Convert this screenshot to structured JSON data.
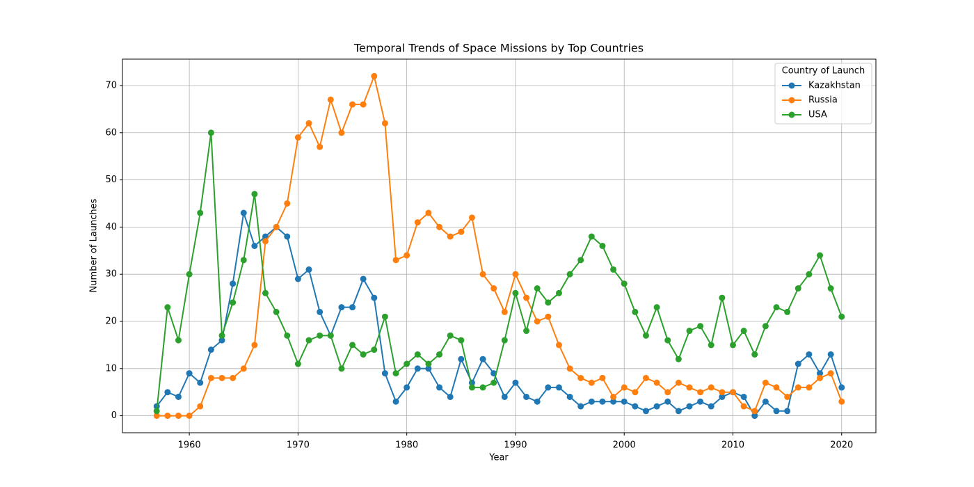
{
  "chart_data": {
    "type": "line",
    "title": "Temporal Trends of Space Missions by Top Countries",
    "x_label": "Year",
    "y_label": "Number of Launches",
    "x": [
      1957,
      1958,
      1959,
      1960,
      1961,
      1962,
      1963,
      1964,
      1965,
      1966,
      1967,
      1968,
      1969,
      1970,
      1971,
      1972,
      1973,
      1974,
      1975,
      1976,
      1977,
      1978,
      1979,
      1980,
      1981,
      1982,
      1983,
      1984,
      1985,
      1986,
      1987,
      1988,
      1989,
      1990,
      1991,
      1992,
      1993,
      1994,
      1995,
      1996,
      1997,
      1998,
      1999,
      2000,
      2001,
      2002,
      2003,
      2004,
      2005,
      2006,
      2007,
      2008,
      2009,
      2010,
      2011,
      2012,
      2013,
      2014,
      2015,
      2016,
      2017,
      2018,
      2019,
      2020
    ],
    "series": [
      {
        "name": "Kazakhstan",
        "color": "#1f77b4",
        "values": [
          2,
          5,
          4,
          9,
          7,
          14,
          16,
          28,
          43,
          36,
          38,
          40,
          38,
          29,
          31,
          22,
          17,
          23,
          23,
          29,
          25,
          9,
          3,
          6,
          10,
          10,
          6,
          4,
          12,
          7,
          12,
          9,
          4,
          7,
          4,
          3,
          6,
          6,
          4,
          2,
          3,
          3,
          3,
          3,
          2,
          1,
          2,
          3,
          1,
          2,
          3,
          2,
          4,
          5,
          4,
          0,
          3,
          1,
          1,
          11,
          13,
          9,
          13,
          6
        ]
      },
      {
        "name": "Russia",
        "color": "#ff7f0e",
        "values": [
          0,
          0,
          0,
          0,
          2,
          8,
          8,
          8,
          10,
          15,
          37,
          40,
          45,
          59,
          62,
          57,
          67,
          60,
          66,
          66,
          72,
          62,
          33,
          34,
          41,
          43,
          40,
          38,
          39,
          42,
          30,
          27,
          22,
          30,
          25,
          20,
          21,
          15,
          10,
          8,
          7,
          8,
          4,
          6,
          5,
          8,
          7,
          5,
          7,
          6,
          5,
          6,
          5,
          5,
          2,
          1,
          7,
          6,
          4,
          6,
          6,
          8,
          9,
          3
        ]
      },
      {
        "name": "USA",
        "color": "#2ca02c",
        "values": [
          1,
          23,
          16,
          30,
          43,
          60,
          17,
          24,
          33,
          47,
          26,
          22,
          17,
          11,
          16,
          17,
          17,
          10,
          15,
          13,
          14,
          21,
          9,
          11,
          13,
          11,
          13,
          17,
          16,
          6,
          6,
          7,
          16,
          26,
          18,
          27,
          24,
          26,
          30,
          33,
          38,
          36,
          31,
          28,
          22,
          17,
          23,
          16,
          12,
          18,
          19,
          15,
          25,
          15,
          18,
          13,
          19,
          23,
          22,
          27,
          30,
          34,
          27,
          21
        ]
      }
    ],
    "xlim": [
      1953.85,
      2023.15
    ],
    "xticks": [
      1960,
      1970,
      1980,
      1990,
      2000,
      2010,
      2020
    ],
    "ylim": [
      -3.6,
      75.6
    ],
    "yticks": [
      0,
      10,
      20,
      30,
      40,
      50,
      60,
      70
    ],
    "grid": true,
    "legend_title": "Country of Launch",
    "legend_position": "upper-right"
  }
}
